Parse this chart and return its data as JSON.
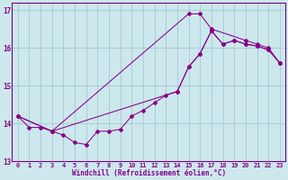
{
  "xlabel": "Windchill (Refroidissement éolien,°C)",
  "bg_color": "#cce8ed",
  "grid_color": "#aacdd4",
  "line_color": "#880088",
  "spine_color": "#7a007a",
  "xlim": [
    -0.5,
    23.5
  ],
  "ylim": [
    13,
    17.2
  ],
  "xticks": [
    0,
    1,
    2,
    3,
    4,
    5,
    6,
    7,
    8,
    9,
    10,
    11,
    12,
    13,
    14,
    15,
    16,
    17,
    18,
    19,
    20,
    21,
    22,
    23
  ],
  "yticks": [
    13,
    14,
    15,
    16,
    17
  ],
  "series1_x": [
    0,
    1,
    2,
    3,
    4,
    5,
    6,
    7,
    8,
    9,
    10,
    11,
    12,
    13,
    14,
    15,
    16,
    17,
    18,
    19,
    20,
    21,
    22,
    23
  ],
  "series1_y": [
    14.2,
    13.9,
    13.9,
    13.8,
    13.7,
    13.5,
    13.45,
    13.8,
    13.8,
    13.85,
    14.2,
    14.35,
    14.55,
    14.75,
    14.85,
    15.5,
    15.85,
    16.45,
    16.1,
    16.2,
    16.1,
    16.05,
    15.95,
    15.6
  ],
  "series2_x": [
    0,
    3,
    14,
    15,
    16,
    17,
    18,
    19,
    20,
    21,
    22,
    23
  ],
  "series2_y": [
    14.2,
    13.8,
    14.85,
    15.5,
    15.85,
    16.45,
    16.1,
    16.2,
    16.1,
    16.05,
    15.95,
    15.6
  ],
  "series3_x": [
    0,
    3,
    15,
    16,
    17,
    20,
    21,
    22,
    23
  ],
  "series3_y": [
    14.2,
    13.8,
    16.9,
    16.9,
    16.5,
    16.2,
    16.1,
    16.0,
    15.6
  ]
}
